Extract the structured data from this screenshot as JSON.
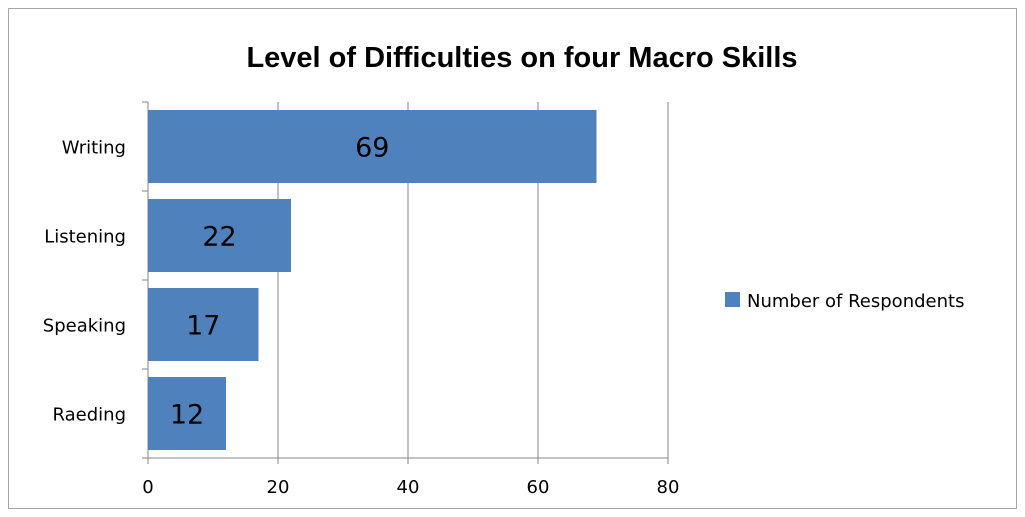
{
  "chart_data": {
    "type": "bar",
    "orientation": "horizontal",
    "title": "Level of Difficulties on four Macro Skills",
    "xlabel": "",
    "ylabel": "",
    "categories": [
      "Writing",
      "Listening",
      "Speaking",
      "Raeding"
    ],
    "series": [
      {
        "name": "Number of Respondents",
        "values": [
          69,
          22,
          17,
          12
        ],
        "color": "#4f81bd"
      }
    ],
    "xlim": [
      0,
      80
    ],
    "xticks": [
      0,
      20,
      40,
      60,
      80
    ],
    "grid": true,
    "legend_position": "right",
    "data_labels": true
  }
}
